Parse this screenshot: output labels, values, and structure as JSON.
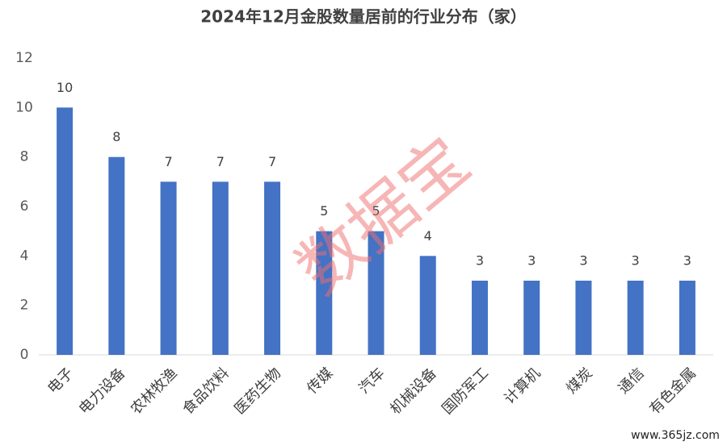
{
  "chart_data": {
    "type": "bar",
    "title": "2024年12月金股数量居前的行业分布（家）",
    "categories": [
      "电子",
      "电力设备",
      "农林牧渔",
      "食品饮料",
      "医药生物",
      "传媒",
      "汽车",
      "机械设备",
      "国防军工",
      "计算机",
      "煤炭",
      "通信",
      "有色金属"
    ],
    "values": [
      10,
      8,
      7,
      7,
      7,
      5,
      5,
      4,
      3,
      3,
      3,
      3,
      3
    ],
    "color": "#4472c4",
    "ylim": [
      0,
      12
    ],
    "yticks": [
      0,
      2,
      4,
      6,
      8,
      10,
      12
    ],
    "grid": false
  },
  "watermark": "数据宝",
  "source": "www.365jz.com"
}
